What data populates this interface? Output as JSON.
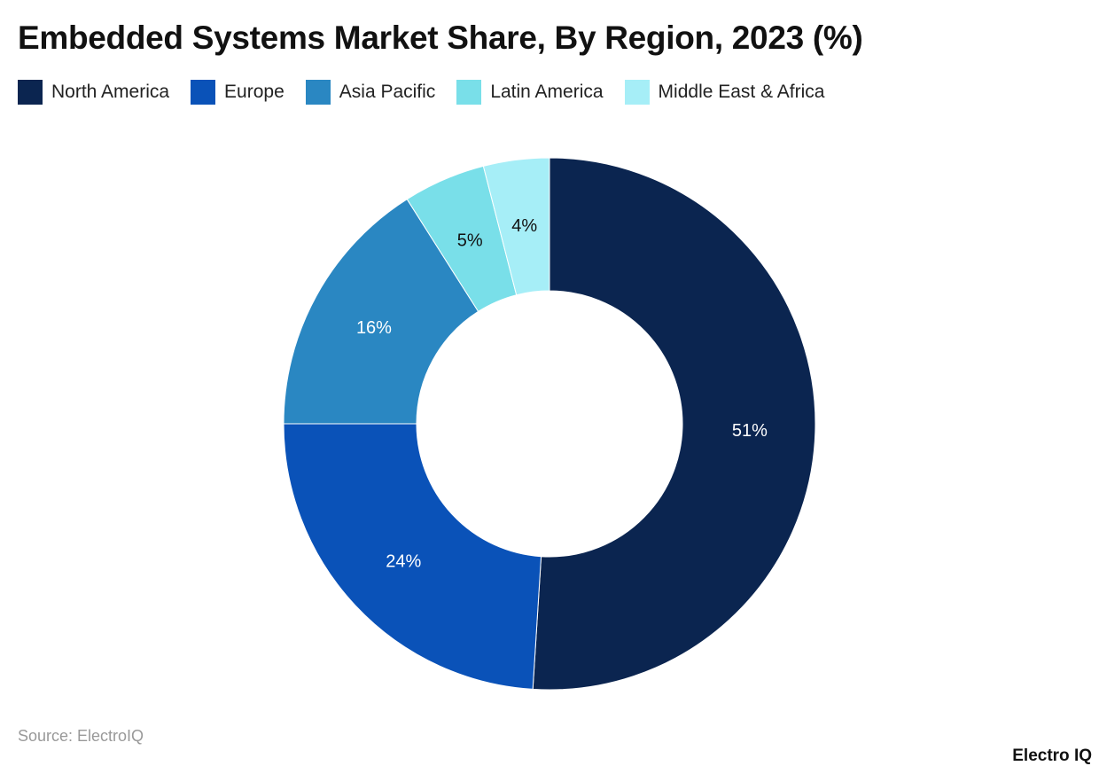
{
  "chart_data": {
    "type": "pie",
    "variant": "donut",
    "title": "Embedded Systems Market Share, By Region, 2023 (%)",
    "categories": [
      "North America",
      "Europe",
      "Asia Pacific",
      "Latin America",
      "Middle East & Africa"
    ],
    "values": [
      51,
      24,
      16,
      5,
      4
    ],
    "data_labels": [
      "51%",
      "24%",
      "16%",
      "5%",
      "4%"
    ],
    "colors": [
      "#0b2550",
      "#0a52b8",
      "#2a87c2",
      "#79dfe9",
      "#a6eef7"
    ],
    "label_colors": [
      "#ffffff",
      "#ffffff",
      "#ffffff",
      "#111111",
      "#111111"
    ],
    "legend_position": "top-left",
    "start": "top",
    "direction": "clockwise"
  },
  "source": "Source: ElectroIQ",
  "logo": "Electro IQ"
}
